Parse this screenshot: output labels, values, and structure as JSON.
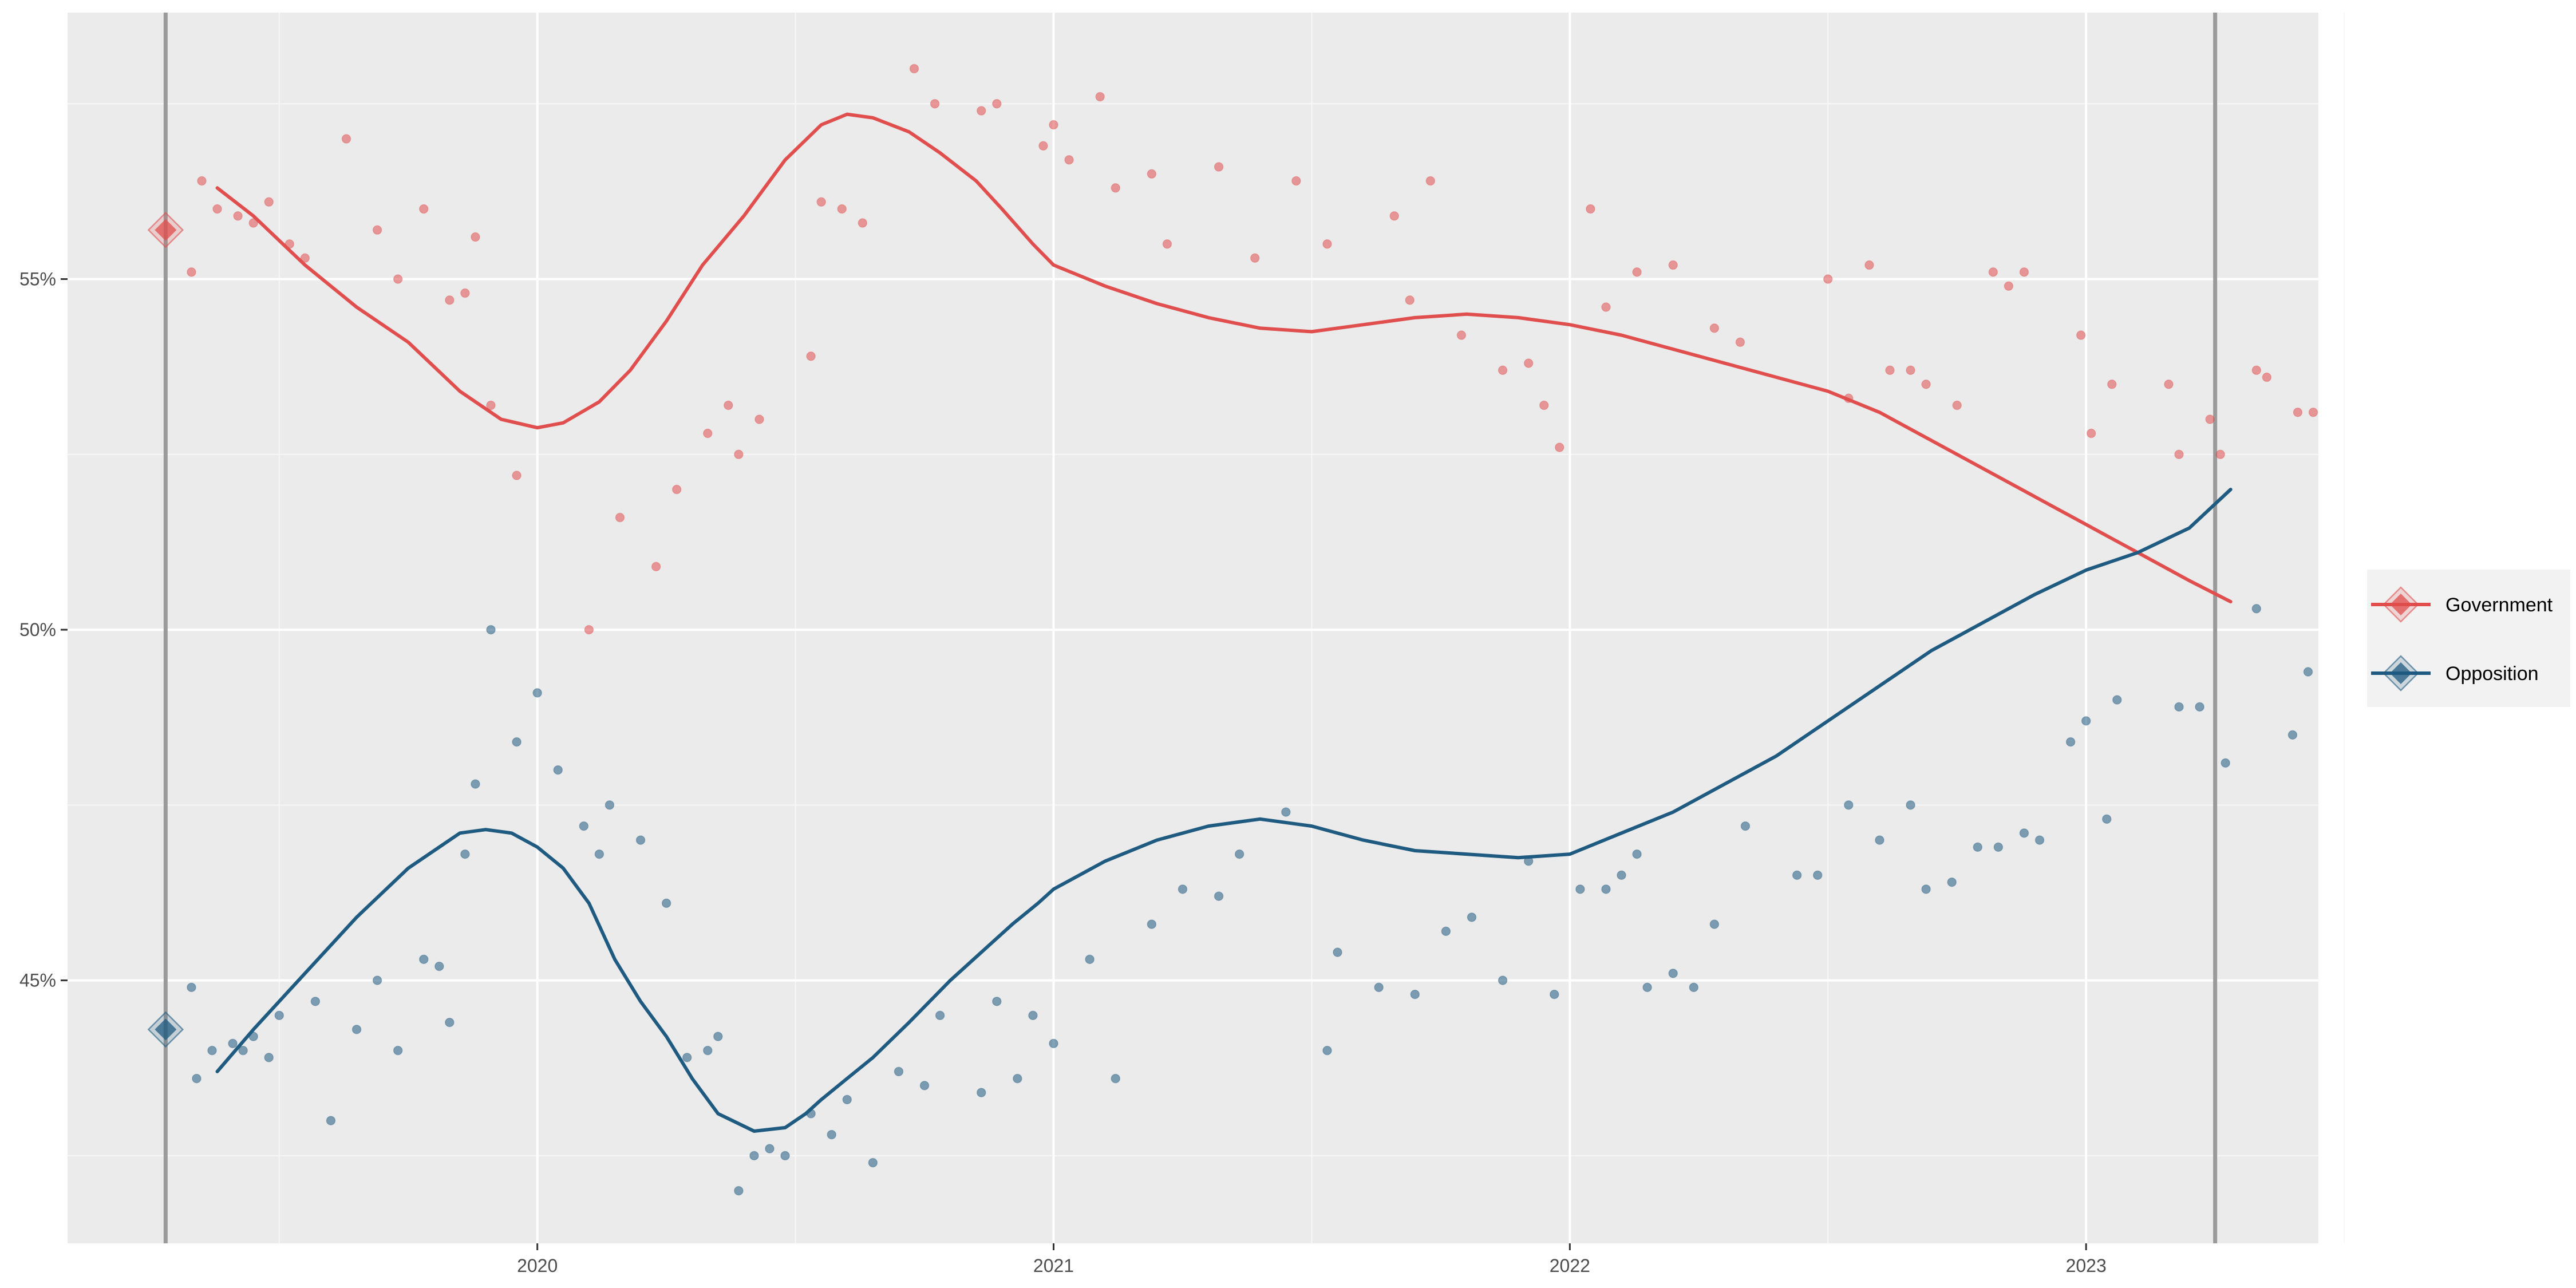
{
  "chart_data": {
    "type": "scatter",
    "title": "",
    "xlabel": "",
    "ylabel": "",
    "xlim": [
      2019.09,
      2023.45
    ],
    "ylim": [
      41.25,
      58.8
    ],
    "x_ticks": [
      2020,
      2021,
      2022,
      2023
    ],
    "x_tick_labels": [
      "2020",
      "2021",
      "2022",
      "2023"
    ],
    "y_ticks": [
      45,
      50,
      55
    ],
    "y_tick_labels": [
      "45%",
      "50%",
      "55%"
    ],
    "grid": true,
    "legend_position": "right",
    "reference_lines_x": [
      2019.28,
      2023.25
    ],
    "series": [
      {
        "name": "Government",
        "color": "#e04e4e",
        "points_x": [
          2019.33,
          2019.35,
          2019.38,
          2019.42,
          2019.45,
          2019.48,
          2019.52,
          2019.55,
          2019.63,
          2019.69,
          2019.73,
          2019.78,
          2019.83,
          2019.86,
          2019.88,
          2019.91,
          2019.96,
          2020.1,
          2020.16,
          2020.23,
          2020.27,
          2020.33,
          2020.37,
          2020.39,
          2020.43,
          2020.53,
          2020.55,
          2020.59,
          2020.63,
          2020.73,
          2020.77,
          2020.86,
          2020.89,
          2020.98,
          2021.0,
          2021.03,
          2021.09,
          2021.12,
          2021.19,
          2021.22,
          2021.32,
          2021.39,
          2021.47,
          2021.53,
          2021.66,
          2021.69,
          2021.73,
          2021.79,
          2021.87,
          2021.92,
          2021.95,
          2021.98,
          2022.04,
          2022.07,
          2022.13,
          2022.2,
          2022.28,
          2022.33,
          2022.5,
          2022.54,
          2022.58,
          2022.62,
          2022.66,
          2022.69,
          2022.75,
          2022.82,
          2022.85,
          2022.88,
          2022.99,
          2023.01,
          2023.05,
          2023.16,
          2023.18,
          2023.24,
          2023.26,
          2023.33,
          2023.35,
          2023.41,
          2023.44
        ],
        "points_y": [
          55.1,
          56.4,
          56.0,
          55.9,
          55.8,
          56.1,
          55.5,
          55.3,
          57.0,
          55.7,
          55.0,
          56.0,
          54.7,
          54.8,
          55.6,
          53.2,
          52.2,
          50.0,
          51.6,
          50.9,
          52.0,
          52.8,
          53.2,
          52.5,
          53.0,
          53.9,
          56.1,
          56.0,
          55.8,
          58.0,
          57.5,
          57.4,
          57.5,
          56.9,
          57.2,
          56.7,
          57.6,
          56.3,
          56.5,
          55.5,
          56.6,
          55.3,
          56.4,
          55.5,
          55.9,
          54.7,
          56.4,
          54.2,
          53.7,
          53.8,
          53.2,
          52.6,
          56.0,
          54.6,
          55.1,
          55.2,
          54.3,
          54.1,
          55.0,
          53.3,
          55.2,
          53.7,
          53.7,
          53.5,
          53.2,
          55.1,
          54.9,
          55.1,
          54.2,
          52.8,
          53.5,
          53.5,
          52.5,
          53.0,
          52.5,
          53.7,
          53.6,
          53.1,
          53.1
        ],
        "trend_x": [
          2019.38,
          2019.45,
          2019.55,
          2019.65,
          2019.75,
          2019.85,
          2019.93,
          2020.0,
          2020.05,
          2020.12,
          2020.18,
          2020.25,
          2020.32,
          2020.4,
          2020.48,
          2020.55,
          2020.6,
          2020.65,
          2020.72,
          2020.78,
          2020.85,
          2020.9,
          2020.96,
          2021.0,
          2021.1,
          2021.2,
          2021.3,
          2021.4,
          2021.5,
          2021.6,
          2021.7,
          2021.8,
          2021.9,
          2022.0,
          2022.1,
          2022.2,
          2022.3,
          2022.4,
          2022.5,
          2022.6,
          2022.7,
          2022.8,
          2022.9,
          2023.0,
          2023.1,
          2023.2,
          2023.28
        ],
        "trend_y": [
          56.3,
          55.9,
          55.2,
          54.6,
          54.1,
          53.4,
          53.0,
          52.88,
          52.95,
          53.25,
          53.7,
          54.4,
          55.2,
          55.9,
          56.7,
          57.2,
          57.35,
          57.3,
          57.1,
          56.8,
          56.4,
          56.0,
          55.5,
          55.2,
          54.9,
          54.65,
          54.45,
          54.3,
          54.25,
          54.35,
          54.45,
          54.5,
          54.45,
          54.35,
          54.2,
          54.0,
          53.8,
          53.6,
          53.4,
          53.1,
          52.7,
          52.3,
          51.9,
          51.5,
          51.1,
          50.7,
          50.4
        ],
        "start_marker": {
          "x": 2019.28,
          "y": 55.7
        }
      },
      {
        "name": "Opposition",
        "color": "#1f5a80",
        "points_x": [
          2019.33,
          2019.34,
          2019.37,
          2019.41,
          2019.43,
          2019.45,
          2019.48,
          2019.5,
          2019.57,
          2019.6,
          2019.65,
          2019.69,
          2019.73,
          2019.78,
          2019.81,
          2019.83,
          2019.86,
          2019.88,
          2019.91,
          2019.96,
          2020.0,
          2020.04,
          2020.09,
          2020.12,
          2020.14,
          2020.2,
          2020.25,
          2020.29,
          2020.33,
          2020.35,
          2020.39,
          2020.42,
          2020.45,
          2020.48,
          2020.53,
          2020.57,
          2020.6,
          2020.65,
          2020.7,
          2020.75,
          2020.78,
          2020.86,
          2020.89,
          2020.93,
          2020.96,
          2021.0,
          2021.07,
          2021.12,
          2021.19,
          2021.25,
          2021.32,
          2021.36,
          2021.45,
          2021.53,
          2021.55,
          2021.63,
          2021.7,
          2021.76,
          2021.81,
          2021.87,
          2021.92,
          2021.97,
          2022.02,
          2022.07,
          2022.1,
          2022.13,
          2022.15,
          2022.2,
          2022.24,
          2022.28,
          2022.34,
          2022.44,
          2022.48,
          2022.54,
          2022.6,
          2022.66,
          2022.69,
          2022.74,
          2022.79,
          2022.83,
          2022.88,
          2022.91,
          2022.97,
          2023.0,
          2023.04,
          2023.06,
          2023.18,
          2023.22,
          2023.27,
          2023.33,
          2023.4,
          2023.43
        ],
        "points_y": [
          44.9,
          43.6,
          44.0,
          44.1,
          44.0,
          44.2,
          43.9,
          44.5,
          44.7,
          43.0,
          44.3,
          45.0,
          44.0,
          45.3,
          45.2,
          44.4,
          46.8,
          47.8,
          50.0,
          48.4,
          49.1,
          48.0,
          47.2,
          46.8,
          47.5,
          47.0,
          46.1,
          43.9,
          44.0,
          44.2,
          42.0,
          42.5,
          42.6,
          42.5,
          43.1,
          42.8,
          43.3,
          42.4,
          43.7,
          43.5,
          44.5,
          43.4,
          44.7,
          43.6,
          44.5,
          44.1,
          45.3,
          43.6,
          45.8,
          46.3,
          46.2,
          46.8,
          47.4,
          44.0,
          45.4,
          44.9,
          44.8,
          45.7,
          45.9,
          45.0,
          46.7,
          44.8,
          46.3,
          46.3,
          46.5,
          46.8,
          44.9,
          45.1,
          44.9,
          45.8,
          47.2,
          46.5,
          46.5,
          47.5,
          47.0,
          47.5,
          46.3,
          46.4,
          46.9,
          46.9,
          47.1,
          47.0,
          48.4,
          48.7,
          47.3,
          49.0,
          48.9,
          48.9,
          48.1,
          50.3,
          48.5,
          49.4
        ],
        "trend_x": [
          2019.38,
          2019.45,
          2019.55,
          2019.65,
          2019.75,
          2019.85,
          2019.9,
          2019.95,
          2020.0,
          2020.05,
          2020.1,
          2020.15,
          2020.2,
          2020.25,
          2020.3,
          2020.35,
          2020.42,
          2020.48,
          2020.52,
          2020.55,
          2020.6,
          2020.65,
          2020.72,
          2020.8,
          2020.86,
          2020.92,
          2020.97,
          2021.0,
          2021.1,
          2021.2,
          2021.3,
          2021.4,
          2021.5,
          2021.6,
          2021.7,
          2021.8,
          2021.9,
          2022.0,
          2022.1,
          2022.2,
          2022.3,
          2022.4,
          2022.5,
          2022.6,
          2022.7,
          2022.8,
          2022.9,
          2023.0,
          2023.1,
          2023.2,
          2023.28
        ],
        "trend_y": [
          43.7,
          44.3,
          45.1,
          45.9,
          46.6,
          47.1,
          47.15,
          47.1,
          46.9,
          46.6,
          46.1,
          45.3,
          44.7,
          44.2,
          43.6,
          43.1,
          42.85,
          42.9,
          43.1,
          43.3,
          43.6,
          43.9,
          44.4,
          45.0,
          45.4,
          45.8,
          46.1,
          46.3,
          46.7,
          47.0,
          47.2,
          47.3,
          47.2,
          47.0,
          46.85,
          46.8,
          46.75,
          46.8,
          47.1,
          47.4,
          47.8,
          48.2,
          48.7,
          49.2,
          49.7,
          50.1,
          50.5,
          50.85,
          51.1,
          51.45,
          52.0
        ],
        "start_marker": {
          "x": 2019.28,
          "y": 44.3
        }
      }
    ]
  }
}
